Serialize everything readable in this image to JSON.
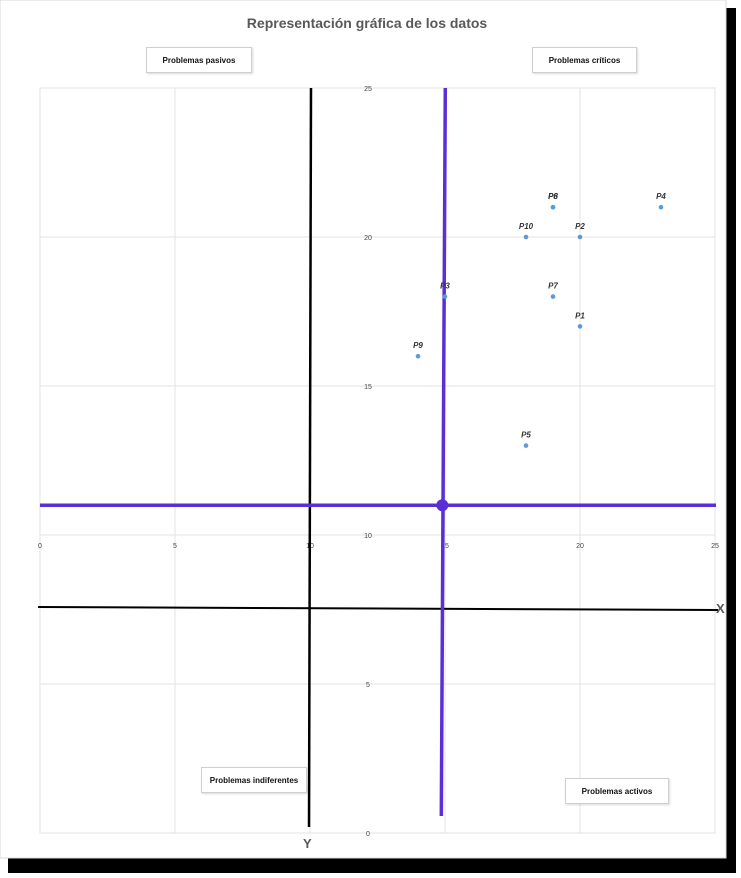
{
  "chart_data": {
    "type": "scatter",
    "title": "Representación gráfica de los datos",
    "xlim": [
      0,
      25
    ],
    "ylim": [
      0,
      25
    ],
    "x_ticks": [
      0,
      5,
      10,
      15,
      20,
      25
    ],
    "y_ticks": [
      0,
      5,
      10,
      15,
      20,
      25
    ],
    "grid": true,
    "points": [
      {
        "label": "P1",
        "x": 20,
        "y": 17
      },
      {
        "label": "P2",
        "x": 20,
        "y": 20
      },
      {
        "label": "P3",
        "x": 15,
        "y": 18
      },
      {
        "label": "P4",
        "x": 23,
        "y": 21
      },
      {
        "label": "P5",
        "x": 18,
        "y": 13
      },
      {
        "label": "P6",
        "x": 19,
        "y": 21
      },
      {
        "label": "P7",
        "x": 19,
        "y": 18
      },
      {
        "label": "P8",
        "x": 19,
        "y": 21
      },
      {
        "label": "P9",
        "x": 14,
        "y": 16
      },
      {
        "label": "P10",
        "x": 18,
        "y": 20
      }
    ],
    "point_color": "#5b9bd5",
    "center": {
      "x": 14.9,
      "y": 11
    },
    "center_color": "#5a2fd6",
    "axis_color": "#000000",
    "axis_x_label": "X",
    "axis_y_label": "Y",
    "quadrants": {
      "top_left": "Problemas pasivos",
      "top_right": "Problemas críticos",
      "bottom_left": "Problemas indiferentes",
      "bottom_right": "Problemas activos"
    }
  }
}
